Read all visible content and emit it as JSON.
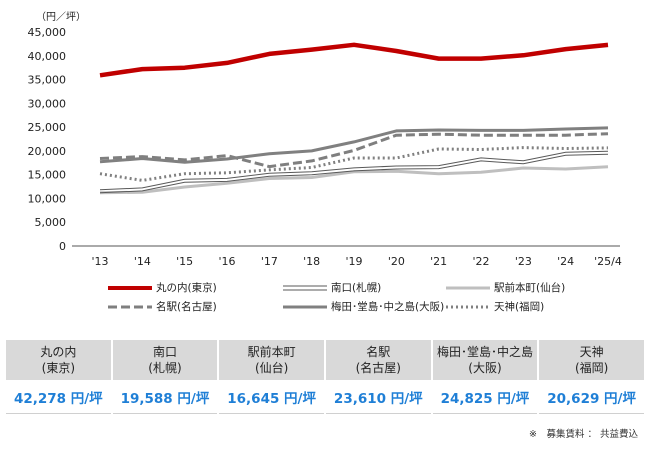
{
  "chart_data": {
    "type": "line",
    "unit_label": "（円／坪）",
    "ylim": [
      0,
      45000
    ],
    "yticks": [
      "45,000",
      "40,000",
      "35,000",
      "30,000",
      "25,000",
      "20,000",
      "15,000",
      "10,000",
      "5,000",
      "0"
    ],
    "ytick_values": [
      45000,
      40000,
      35000,
      30000,
      25000,
      20000,
      15000,
      10000,
      5000,
      0
    ],
    "categories": [
      "'13",
      "'14",
      "'15",
      "'16",
      "'17",
      "'18",
      "'19",
      "'20",
      "'21",
      "'22",
      "'23",
      "'24",
      "'25/4"
    ],
    "grid": false,
    "legend_position": "bottom",
    "series": [
      {
        "name": "丸の内(東京)",
        "style": "thick",
        "color": "#c00000",
        "values": [
          35900,
          37200,
          37500,
          38500,
          40400,
          41300,
          42300,
          41000,
          39400,
          39400,
          40100,
          41400,
          42278
        ]
      },
      {
        "name": "南口(札幌)",
        "style": "double",
        "color": "#595959",
        "values": [
          11500,
          11900,
          13700,
          13900,
          15000,
          15300,
          16100,
          16500,
          16600,
          18200,
          17600,
          19400,
          19588
        ]
      },
      {
        "name": "駅前本町(仙台)",
        "style": "light",
        "color": "#bfbfbf",
        "values": [
          11200,
          11300,
          12400,
          13200,
          14200,
          14400,
          15600,
          15700,
          15200,
          15500,
          16400,
          16200,
          16645
        ]
      },
      {
        "name": "名駅(名古屋)",
        "style": "dashed",
        "color": "#7f7f7f",
        "values": [
          18400,
          18800,
          18100,
          19000,
          16700,
          17900,
          20100,
          23300,
          23500,
          23300,
          23300,
          23300,
          23610
        ]
      },
      {
        "name": "梅田･堂島･中之島(大阪)",
        "style": "medium",
        "color": "#808080",
        "values": [
          17700,
          18400,
          17600,
          18300,
          19400,
          20000,
          21900,
          24200,
          24400,
          24300,
          24300,
          24600,
          24825
        ]
      },
      {
        "name": "天神(福岡)",
        "style": "dotted",
        "color": "#808080",
        "values": [
          15200,
          13800,
          15200,
          15400,
          16000,
          16500,
          18500,
          18500,
          20400,
          20300,
          20700,
          20500,
          20629
        ]
      }
    ]
  },
  "summary_table": [
    {
      "area": "丸の内",
      "city": "(東京)",
      "value": "42,278 円/坪"
    },
    {
      "area": "南口",
      "city": "(札幌)",
      "value": "19,588 円/坪"
    },
    {
      "area": "駅前本町",
      "city": "(仙台)",
      "value": "16,645 円/坪"
    },
    {
      "area": "名駅",
      "city": "(名古屋)",
      "value": "23,610 円/坪"
    },
    {
      "area": "梅田･堂島･中之島",
      "city": "(大阪)",
      "value": "24,825 円/坪"
    },
    {
      "area": "天神",
      "city": "(福岡)",
      "value": "20,629 円/坪"
    }
  ],
  "note": "※　募集賃料 ： 共益費込"
}
